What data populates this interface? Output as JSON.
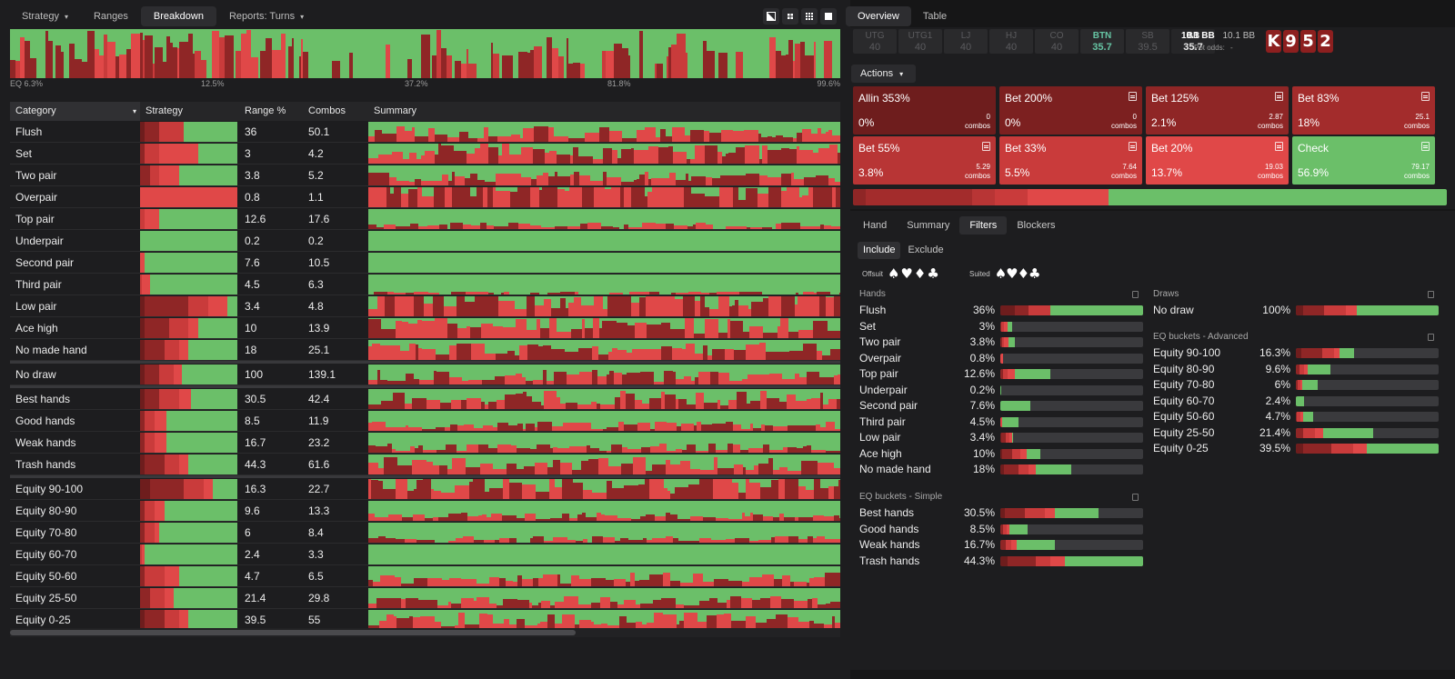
{
  "colors": {
    "green": "#6bbf69",
    "red": "#e04848",
    "red_mid": "#c93b3b",
    "red_dark": "#8f2626",
    "red_darker": "#6e1d1d",
    "bg": "#0d0d0e",
    "panel": "#1d1d1f"
  },
  "left_tabs": [
    {
      "label": "Strategy",
      "dropdown": true,
      "active": false
    },
    {
      "label": "Ranges",
      "dropdown": false,
      "active": false
    },
    {
      "label": "Breakdown",
      "dropdown": false,
      "active": true
    },
    {
      "label": "Reports: Turns",
      "dropdown": true,
      "active": false
    }
  ],
  "view_buttons": [
    "contrast-icon",
    "grid-small-icon",
    "grid-large-icon",
    "square-icon"
  ],
  "eq_axis_labels": [
    "EQ 6.3%",
    "12.5%",
    "37.2%",
    "81.8%",
    "99.6%"
  ],
  "table": {
    "headers": {
      "category": "Category",
      "strategy": "Strategy",
      "range": "Range %",
      "combos": "Combos",
      "summary": "Summary"
    },
    "groups": [
      [
        {
          "name": "Flush",
          "range": "36",
          "combos": "50.1",
          "strat": [
            0.05,
            0.15,
            0.25,
            0.0,
            0.55
          ]
        },
        {
          "name": "Set",
          "range": "3",
          "combos": "4.2",
          "strat": [
            0.0,
            0.05,
            0.15,
            0.4,
            0.4
          ]
        },
        {
          "name": "Two pair",
          "range": "3.8",
          "combos": "5.2",
          "strat": [
            0.0,
            0.1,
            0.1,
            0.2,
            0.6
          ]
        },
        {
          "name": "Overpair",
          "range": "0.8",
          "combos": "1.1",
          "strat": [
            0.0,
            0.0,
            0.0,
            1.0,
            0.0
          ]
        },
        {
          "name": "Top pair",
          "range": "12.6",
          "combos": "17.6",
          "strat": [
            0.0,
            0.0,
            0.05,
            0.15,
            0.8
          ]
        },
        {
          "name": "Underpair",
          "range": "0.2",
          "combos": "0.2",
          "strat": [
            0.0,
            0.0,
            0.0,
            0.0,
            1.0
          ]
        },
        {
          "name": "Second pair",
          "range": "7.6",
          "combos": "10.5",
          "strat": [
            0.0,
            0.0,
            0.0,
            0.05,
            0.95
          ]
        },
        {
          "name": "Third pair",
          "range": "4.5",
          "combos": "6.3",
          "strat": [
            0.0,
            0.0,
            0.02,
            0.08,
            0.9
          ]
        },
        {
          "name": "Low pair",
          "range": "3.4",
          "combos": "4.8",
          "strat": [
            0.05,
            0.45,
            0.2,
            0.2,
            0.1
          ]
        },
        {
          "name": "Ace high",
          "range": "10",
          "combos": "13.9",
          "strat": [
            0.05,
            0.25,
            0.2,
            0.1,
            0.4
          ]
        },
        {
          "name": "No made hand",
          "range": "18",
          "combos": "25.1",
          "strat": [
            0.05,
            0.2,
            0.15,
            0.1,
            0.5
          ]
        }
      ],
      [
        {
          "name": "No draw",
          "range": "100",
          "combos": "139.1",
          "strat": [
            0.05,
            0.15,
            0.15,
            0.08,
            0.57
          ]
        }
      ],
      [
        {
          "name": "Best hands",
          "range": "30.5",
          "combos": "42.4",
          "strat": [
            0.05,
            0.15,
            0.2,
            0.12,
            0.48
          ]
        },
        {
          "name": "Good hands",
          "range": "8.5",
          "combos": "11.9",
          "strat": [
            0.0,
            0.05,
            0.1,
            0.12,
            0.73
          ]
        },
        {
          "name": "Weak hands",
          "range": "16.7",
          "combos": "23.2",
          "strat": [
            0.0,
            0.05,
            0.1,
            0.12,
            0.73
          ]
        },
        {
          "name": "Trash hands",
          "range": "44.3",
          "combos": "61.6",
          "strat": [
            0.05,
            0.2,
            0.15,
            0.1,
            0.5
          ]
        }
      ],
      [
        {
          "name": "Equity 90-100",
          "range": "16.3",
          "combos": "22.7",
          "strat": [
            0.1,
            0.35,
            0.2,
            0.1,
            0.25
          ]
        },
        {
          "name": "Equity 80-90",
          "range": "9.6",
          "combos": "13.3",
          "strat": [
            0.0,
            0.05,
            0.1,
            0.1,
            0.75
          ]
        },
        {
          "name": "Equity 70-80",
          "range": "6",
          "combos": "8.4",
          "strat": [
            0.0,
            0.05,
            0.1,
            0.05,
            0.8
          ]
        },
        {
          "name": "Equity 60-70",
          "range": "2.4",
          "combos": "3.3",
          "strat": [
            0.0,
            0.0,
            0.02,
            0.03,
            0.95
          ]
        },
        {
          "name": "Equity 50-60",
          "range": "4.7",
          "combos": "6.5",
          "strat": [
            0.0,
            0.05,
            0.2,
            0.15,
            0.6
          ]
        },
        {
          "name": "Equity 25-50",
          "range": "21.4",
          "combos": "29.8",
          "strat": [
            0.0,
            0.1,
            0.15,
            0.1,
            0.65
          ]
        },
        {
          "name": "Equity 0-25",
          "range": "39.5",
          "combos": "55",
          "strat": [
            0.05,
            0.2,
            0.15,
            0.1,
            0.5
          ]
        }
      ]
    ]
  },
  "right_tabs": [
    {
      "label": "Overview",
      "active": true
    },
    {
      "label": "Table",
      "active": false
    }
  ],
  "positions": [
    {
      "name": "UTG",
      "stack": "40"
    },
    {
      "name": "UTG1",
      "stack": "40"
    },
    {
      "name": "LJ",
      "stack": "40"
    },
    {
      "name": "HJ",
      "stack": "40"
    },
    {
      "name": "CO",
      "stack": "40"
    },
    {
      "name": "BTN",
      "stack": "35.7"
    },
    {
      "name": "SB",
      "stack": "39.5"
    },
    {
      "name": "BB",
      "stack": "35.7"
    }
  ],
  "pot": {
    "stack1": "10.1 BB",
    "stack2": "10.1 BB",
    "pot_odds_label": "Pot odds:",
    "pot_odds_value": "-"
  },
  "board": [
    "K",
    "9",
    "5",
    "2"
  ],
  "actions_label": "Actions",
  "actions": [
    {
      "name": "Allin 353%",
      "pct": "0%",
      "combos": "0",
      "combos_label": "combos",
      "icon": false,
      "color": "#6e1d1d"
    },
    {
      "name": "Bet 200%",
      "pct": "0%",
      "combos": "0",
      "combos_label": "combos",
      "icon": true,
      "color": "#7c2020"
    },
    {
      "name": "Bet 125%",
      "pct": "2.1%",
      "combos": "2.87",
      "combos_label": "combos",
      "icon": true,
      "color": "#8f2626"
    },
    {
      "name": "Bet 83%",
      "pct": "18%",
      "combos": "25.1",
      "combos_label": "combos",
      "icon": true,
      "color": "#a32c2c"
    },
    {
      "name": "Bet 55%",
      "pct": "3.8%",
      "combos": "5.29",
      "combos_label": "combos",
      "icon": true,
      "color": "#b83535"
    },
    {
      "name": "Bet 33%",
      "pct": "5.5%",
      "combos": "7.64",
      "combos_label": "combos",
      "icon": true,
      "color": "#c93b3b"
    },
    {
      "name": "Bet 20%",
      "pct": "13.7%",
      "combos": "19.03",
      "combos_label": "combos",
      "icon": true,
      "color": "#e04848"
    },
    {
      "name": "Check",
      "pct": "56.9%",
      "combos": "79.17",
      "combos_label": "combos",
      "icon": true,
      "color": "#6bbf69"
    }
  ],
  "action_bar": [
    {
      "frac": 0.021,
      "color": "#8f2626"
    },
    {
      "frac": 0.18,
      "color": "#a32c2c"
    },
    {
      "frac": 0.038,
      "color": "#b83535"
    },
    {
      "frac": 0.055,
      "color": "#c93b3b"
    },
    {
      "frac": 0.137,
      "color": "#e04848"
    },
    {
      "frac": 0.569,
      "color": "#6bbf69"
    }
  ],
  "sub_tabs": [
    {
      "label": "Hand",
      "active": false
    },
    {
      "label": "Summary",
      "active": false
    },
    {
      "label": "Filters",
      "active": true
    },
    {
      "label": "Blockers",
      "active": false
    }
  ],
  "include_tabs": [
    {
      "label": "Include",
      "active": true
    },
    {
      "label": "Exclude",
      "active": false
    }
  ],
  "suits": {
    "offsuit_label": "Offsuit",
    "offsuit_glyphs": "♠♥♦♣",
    "suited_label": "Suited",
    "suited_glyphs": "♠♥♦♣"
  },
  "filters": {
    "hands": {
      "title": "Hands",
      "rows": [
        {
          "label": "Flush",
          "value": "36%",
          "frac": 1.0,
          "seg": [
            0.1,
            0.1,
            0.15,
            0.0,
            0.65
          ]
        },
        {
          "label": "Set",
          "value": "3%",
          "frac": 0.08,
          "seg": [
            0.0,
            0.1,
            0.2,
            0.35,
            0.35
          ]
        },
        {
          "label": "Two pair",
          "value": "3.8%",
          "frac": 0.1,
          "seg": [
            0.0,
            0.1,
            0.15,
            0.3,
            0.45
          ]
        },
        {
          "label": "Overpair",
          "value": "0.8%",
          "frac": 0.02,
          "seg": [
            0.0,
            0.0,
            0.0,
            1.0,
            0.0
          ]
        },
        {
          "label": "Top pair",
          "value": "12.6%",
          "frac": 0.35,
          "seg": [
            0.0,
            0.05,
            0.1,
            0.15,
            0.7
          ]
        },
        {
          "label": "Underpair",
          "value": "0.2%",
          "frac": 0.005,
          "seg": [
            0,
            0,
            0,
            0,
            1
          ]
        },
        {
          "label": "Second pair",
          "value": "7.6%",
          "frac": 0.21,
          "seg": [
            0,
            0,
            0,
            0,
            1
          ]
        },
        {
          "label": "Third pair",
          "value": "4.5%",
          "frac": 0.13,
          "seg": [
            0,
            0,
            0,
            0.1,
            0.9
          ]
        },
        {
          "label": "Low pair",
          "value": "3.4%",
          "frac": 0.09,
          "seg": [
            0.1,
            0.35,
            0.25,
            0.2,
            0.1
          ]
        },
        {
          "label": "Ace high",
          "value": "10%",
          "frac": 0.28,
          "seg": [
            0.05,
            0.25,
            0.2,
            0.15,
            0.35
          ]
        },
        {
          "label": "No made hand",
          "value": "18%",
          "frac": 0.5,
          "seg": [
            0.05,
            0.2,
            0.15,
            0.1,
            0.5
          ]
        }
      ]
    },
    "eq_simple": {
      "title": "EQ buckets - Simple",
      "rows": [
        {
          "label": "Best hands",
          "value": "30.5%",
          "frac": 0.69,
          "seg": [
            0.05,
            0.2,
            0.2,
            0.1,
            0.45
          ]
        },
        {
          "label": "Good hands",
          "value": "8.5%",
          "frac": 0.19,
          "seg": [
            0.0,
            0.1,
            0.15,
            0.1,
            0.65
          ]
        },
        {
          "label": "Weak hands",
          "value": "16.7%",
          "frac": 0.38,
          "seg": [
            0.0,
            0.1,
            0.1,
            0.1,
            0.7
          ]
        },
        {
          "label": "Trash hands",
          "value": "44.3%",
          "frac": 1.0,
          "seg": [
            0.05,
            0.2,
            0.1,
            0.1,
            0.55
          ]
        }
      ]
    },
    "draws": {
      "title": "Draws",
      "rows": [
        {
          "label": "No draw",
          "value": "100%",
          "frac": 1.0,
          "seg": [
            0.05,
            0.15,
            0.15,
            0.08,
            0.57
          ]
        }
      ]
    },
    "eq_advanced": {
      "title": "EQ buckets - Advanced",
      "rows": [
        {
          "label": "Equity 90-100",
          "value": "16.3%",
          "frac": 0.41,
          "seg": [
            0.1,
            0.35,
            0.2,
            0.1,
            0.25
          ]
        },
        {
          "label": "Equity 80-90",
          "value": "9.6%",
          "frac": 0.24,
          "seg": [
            0.0,
            0.1,
            0.15,
            0.1,
            0.65
          ]
        },
        {
          "label": "Equity 70-80",
          "value": "6%",
          "frac": 0.15,
          "seg": [
            0.0,
            0.1,
            0.1,
            0.1,
            0.7
          ]
        },
        {
          "label": "Equity 60-70",
          "value": "2.4%",
          "frac": 0.06,
          "seg": [
            0,
            0,
            0,
            0.05,
            0.95
          ]
        },
        {
          "label": "Equity 50-60",
          "value": "4.7%",
          "frac": 0.12,
          "seg": [
            0.0,
            0.05,
            0.2,
            0.2,
            0.55
          ]
        },
        {
          "label": "Equity 25-50",
          "value": "21.4%",
          "frac": 0.54,
          "seg": [
            0.0,
            0.1,
            0.15,
            0.1,
            0.65
          ]
        },
        {
          "label": "Equity 0-25",
          "value": "39.5%",
          "frac": 1.0,
          "seg": [
            0.05,
            0.2,
            0.15,
            0.1,
            0.5
          ]
        }
      ]
    }
  }
}
